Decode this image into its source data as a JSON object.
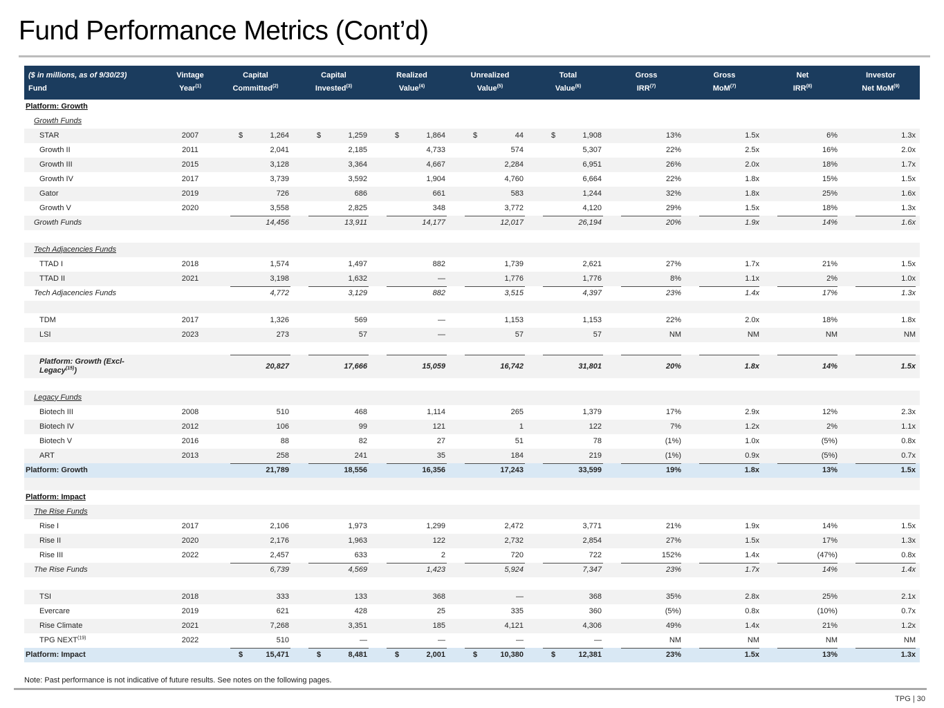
{
  "slide": {
    "title": "Fund Performance Metrics (Cont’d)",
    "note": "Note: Past performance is not indicative of future results. See notes on the following pages.",
    "page_label": "TPG | 30"
  },
  "colors": {
    "header_bg": "#1b3c5e",
    "stripe_gray": "#f2f2f2",
    "highlight_blue": "#d9e8f4",
    "title_rule": "#bcbcbc"
  },
  "table": {
    "header": {
      "col0_line1": "($ in millions, as of 9/30/23)",
      "col0_line2": "Fund",
      "columns": [
        {
          "line1": "Vintage",
          "line2": "Year",
          "sup": "(1)"
        },
        {
          "line1": "Capital",
          "line2": "Committed",
          "sup": "(2)"
        },
        {
          "line1": "Capital",
          "line2": "Invested",
          "sup": "(3)"
        },
        {
          "line1": "Realized",
          "line2": "Value",
          "sup": "(4)"
        },
        {
          "line1": "Unrealized",
          "line2": "Value",
          "sup": "(5)"
        },
        {
          "line1": "Total",
          "line2": "Value",
          "sup": "(6)"
        },
        {
          "line1": "Gross",
          "line2": "IRR",
          "sup": "(7)"
        },
        {
          "line1": "Gross",
          "line2": "MoM",
          "sup": "(7)"
        },
        {
          "line1": "Net",
          "line2": "IRR",
          "sup": "(8)"
        },
        {
          "line1": "Investor",
          "line2": "Net MoM",
          "sup": "(9)"
        }
      ]
    },
    "rows": [
      {
        "type": "section",
        "bg": "white",
        "label": "Platform: Growth"
      },
      {
        "type": "subsection",
        "bg": "white",
        "label": "Growth Funds"
      },
      {
        "type": "data",
        "bg": "gray",
        "label": "STAR",
        "year": "2007",
        "dollar": true,
        "values": [
          "1,264",
          "1,259",
          "1,864",
          "44",
          "1,908"
        ],
        "ratios": [
          "13%",
          "1.5x",
          "6%",
          "1.3x"
        ]
      },
      {
        "type": "data",
        "bg": "white",
        "label": "Growth II",
        "year": "2011",
        "values": [
          "2,041",
          "2,185",
          "4,733",
          "574",
          "5,307"
        ],
        "ratios": [
          "22%",
          "2.5x",
          "16%",
          "2.0x"
        ]
      },
      {
        "type": "data",
        "bg": "gray",
        "label": "Growth III",
        "year": "2015",
        "values": [
          "3,128",
          "3,364",
          "4,667",
          "2,284",
          "6,951"
        ],
        "ratios": [
          "26%",
          "2.0x",
          "18%",
          "1.7x"
        ]
      },
      {
        "type": "data",
        "bg": "white",
        "label": "Growth IV",
        "year": "2017",
        "values": [
          "3,739",
          "3,592",
          "1,904",
          "4,760",
          "6,664"
        ],
        "ratios": [
          "22%",
          "1.8x",
          "15%",
          "1.5x"
        ]
      },
      {
        "type": "data",
        "bg": "gray",
        "label": "Gator",
        "year": "2019",
        "values": [
          "726",
          "686",
          "661",
          "583",
          "1,244"
        ],
        "ratios": [
          "32%",
          "1.8x",
          "25%",
          "1.6x"
        ]
      },
      {
        "type": "data",
        "bg": "white",
        "label": "Growth V",
        "year": "2020",
        "values": [
          "3,558",
          "2,825",
          "348",
          "3,772",
          "4,120"
        ],
        "ratios": [
          "29%",
          "1.5x",
          "18%",
          "1.3x"
        ]
      },
      {
        "type": "total",
        "bg": "gray",
        "label": "Growth Funds",
        "topline": true,
        "values": [
          "14,456",
          "13,911",
          "14,177",
          "12,017",
          "26,194"
        ],
        "ratios": [
          "20%",
          "1.9x",
          "14%",
          "1.6x"
        ]
      },
      {
        "type": "blank",
        "bg": "white"
      },
      {
        "type": "subsection",
        "bg": "gray",
        "label": "Tech Adjacencies Funds"
      },
      {
        "type": "data",
        "bg": "white",
        "label": "TTAD I",
        "year": "2018",
        "values": [
          "1,574",
          "1,497",
          "882",
          "1,739",
          "2,621"
        ],
        "ratios": [
          "27%",
          "1.7x",
          "21%",
          "1.5x"
        ]
      },
      {
        "type": "data",
        "bg": "gray",
        "label": "TTAD II",
        "year": "2021",
        "values": [
          "3,198",
          "1,632",
          "—",
          "1,776",
          "1,776"
        ],
        "ratios": [
          "8%",
          "1.1x",
          "2%",
          "1.0x"
        ]
      },
      {
        "type": "total",
        "bg": "white",
        "label": "Tech Adjacencies Funds",
        "topline": true,
        "values": [
          "4,772",
          "3,129",
          "882",
          "3,515",
          "4,397"
        ],
        "ratios": [
          "23%",
          "1.4x",
          "17%",
          "1.3x"
        ]
      },
      {
        "type": "blank",
        "bg": "gray"
      },
      {
        "type": "data",
        "bg": "white",
        "label": "TDM",
        "year": "2017",
        "values": [
          "1,326",
          "569",
          "—",
          "1,153",
          "1,153"
        ],
        "ratios": [
          "22%",
          "2.0x",
          "18%",
          "1.8x"
        ]
      },
      {
        "type": "data",
        "bg": "gray",
        "label": "LSI",
        "year": "2023",
        "values": [
          "273",
          "57",
          "—",
          "57",
          "57"
        ],
        "ratios": [
          "NM",
          "NM",
          "NM",
          "NM"
        ]
      },
      {
        "type": "blank",
        "bg": "white"
      },
      {
        "type": "total2",
        "bg": "gray",
        "label_line1": "Platform: Growth (Excl-",
        "label_line2": "Legacy",
        "sup": "(15)",
        "suffix": ")",
        "topline": true,
        "values": [
          "20,827",
          "17,666",
          "15,059",
          "16,742",
          "31,801"
        ],
        "ratios": [
          "20%",
          "1.8x",
          "14%",
          "1.5x"
        ]
      },
      {
        "type": "blank",
        "bg": "white"
      },
      {
        "type": "subsection",
        "bg": "gray",
        "label": "Legacy Funds"
      },
      {
        "type": "data",
        "bg": "white",
        "label": "Biotech III",
        "year": "2008",
        "values": [
          "510",
          "468",
          "1,114",
          "265",
          "1,379"
        ],
        "ratios": [
          "17%",
          "2.9x",
          "12%",
          "2.3x"
        ]
      },
      {
        "type": "data",
        "bg": "gray",
        "label": "Biotech IV",
        "year": "2012",
        "values": [
          "106",
          "99",
          "121",
          "1",
          "122"
        ],
        "ratios": [
          "7%",
          "1.2x",
          "2%",
          "1.1x"
        ]
      },
      {
        "type": "data",
        "bg": "white",
        "label": "Biotech V",
        "year": "2016",
        "values": [
          "88",
          "82",
          "27",
          "51",
          "78"
        ],
        "ratios": [
          "(1%)",
          "1.0x",
          "(5%)",
          "0.8x"
        ]
      },
      {
        "type": "data",
        "bg": "gray",
        "label": "ART",
        "year": "2013",
        "values": [
          "258",
          "241",
          "35",
          "184",
          "219"
        ],
        "ratios": [
          "(1%)",
          "0.9x",
          "(5%)",
          "0.7x"
        ]
      },
      {
        "type": "platform",
        "bg": "blue",
        "label": "Platform: Growth",
        "topline": true,
        "values": [
          "21,789",
          "18,556",
          "16,356",
          "17,243",
          "33,599"
        ],
        "ratios": [
          "19%",
          "1.8x",
          "13%",
          "1.5x"
        ]
      },
      {
        "type": "blank",
        "bg": "gray"
      },
      {
        "type": "section",
        "bg": "white",
        "label": "Platform: Impact"
      },
      {
        "type": "subsection",
        "bg": "gray",
        "label": "The Rise Funds"
      },
      {
        "type": "data",
        "bg": "white",
        "label": "Rise I",
        "year": "2017",
        "values": [
          "2,106",
          "1,973",
          "1,299",
          "2,472",
          "3,771"
        ],
        "ratios": [
          "21%",
          "1.9x",
          "14%",
          "1.5x"
        ]
      },
      {
        "type": "data",
        "bg": "gray",
        "label": "Rise II",
        "year": "2020",
        "values": [
          "2,176",
          "1,963",
          "122",
          "2,732",
          "2,854"
        ],
        "ratios": [
          "27%",
          "1.5x",
          "17%",
          "1.3x"
        ]
      },
      {
        "type": "data",
        "bg": "white",
        "label": "Rise III",
        "year": "2022",
        "values": [
          "2,457",
          "633",
          "2",
          "720",
          "722"
        ],
        "ratios": [
          "152%",
          "1.4x",
          "(47%)",
          "0.8x"
        ]
      },
      {
        "type": "total",
        "bg": "gray",
        "label": "The Rise Funds",
        "topline": true,
        "values": [
          "6,739",
          "4,569",
          "1,423",
          "5,924",
          "7,347"
        ],
        "ratios": [
          "23%",
          "1.7x",
          "14%",
          "1.4x"
        ]
      },
      {
        "type": "blank",
        "bg": "white"
      },
      {
        "type": "data",
        "bg": "gray",
        "label": "TSI",
        "year": "2018",
        "values": [
          "333",
          "133",
          "368",
          "—",
          "368"
        ],
        "ratios": [
          "35%",
          "2.8x",
          "25%",
          "2.1x"
        ]
      },
      {
        "type": "data",
        "bg": "white",
        "label": "Evercare",
        "year": "2019",
        "values": [
          "621",
          "428",
          "25",
          "335",
          "360"
        ],
        "ratios": [
          "(5%)",
          "0.8x",
          "(10%)",
          "0.7x"
        ]
      },
      {
        "type": "data",
        "bg": "gray",
        "label": "Rise Climate",
        "year": "2021",
        "values": [
          "7,268",
          "3,351",
          "185",
          "4,121",
          "4,306"
        ],
        "ratios": [
          "49%",
          "1.4x",
          "21%",
          "1.2x"
        ]
      },
      {
        "type": "data",
        "bg": "white",
        "label": "TPG NEXT",
        "sup": "(19)",
        "year": "2022",
        "values": [
          "510",
          "—",
          "—",
          "—",
          "—"
        ],
        "ratios": [
          "NM",
          "NM",
          "NM",
          "NM"
        ]
      },
      {
        "type": "platform",
        "bg": "blue",
        "label": "Platform: Impact",
        "dollar": true,
        "topline": true,
        "values": [
          "15,471",
          "8,481",
          "2,001",
          "10,380",
          "12,381"
        ],
        "ratios": [
          "23%",
          "1.5x",
          "13%",
          "1.3x"
        ]
      }
    ]
  }
}
